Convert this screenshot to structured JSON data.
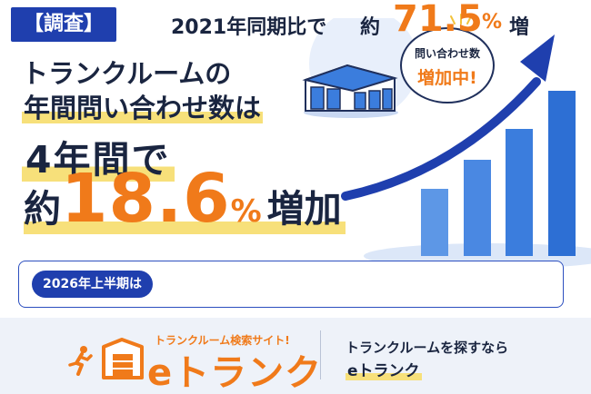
{
  "tag": "【調査】",
  "headline": {
    "line1": "トランクルームの",
    "line2": "年間問い合わせ数は",
    "line3": "4年間で",
    "prefix": "約",
    "number": "18.6",
    "percent": "%",
    "suffix": "増加"
  },
  "bubble": {
    "line1": "問い合わせ数",
    "line2": "増加中!"
  },
  "info": {
    "pill": "2026年上半期は",
    "text": "2021年同期比で",
    "prefix": "約",
    "number": "71.5",
    "percent": "%",
    "suffix": "増"
  },
  "footer": {
    "logo_tagline": "トランクルーム検索サイト!",
    "logo_word": "eトランク",
    "right_line1": "トランクルームを探すなら",
    "right_line2": "eトランク"
  },
  "colors": {
    "navy": "#1f3fae",
    "orange": "#f07a1a",
    "highlight": "#f7e07a",
    "bar_blue": "#3b7ddd"
  },
  "icons": [
    "warehouse-icon",
    "arrow-up-icon",
    "runner-icon"
  ]
}
